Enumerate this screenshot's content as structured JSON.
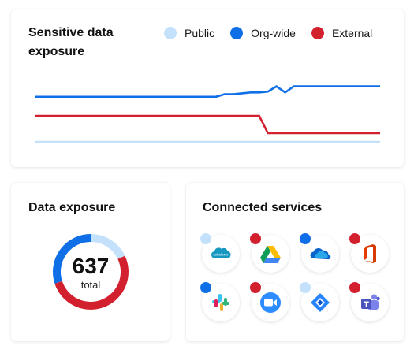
{
  "top_card": {
    "title": "Sensitive data exposure",
    "legend": [
      {
        "label": "Public",
        "color": "#c4e1fb"
      },
      {
        "label": "Org-wide",
        "color": "#0f6fe6"
      },
      {
        "label": "External",
        "color": "#d2202f"
      }
    ]
  },
  "exposure_card": {
    "title": "Data exposure",
    "value": "637",
    "label": "total",
    "segments": [
      {
        "name": "Public",
        "fraction": 0.18,
        "color": "#c4e1fb"
      },
      {
        "name": "External",
        "fraction": 0.52,
        "color": "#d2202f"
      },
      {
        "name": "Org-wide",
        "fraction": 0.3,
        "color": "#0f6fe6"
      }
    ]
  },
  "services_card": {
    "title": "Connected services",
    "services": [
      {
        "icon": "salesforce-icon",
        "wordmark": "salesforce",
        "badge": "#c4e1fb"
      },
      {
        "icon": "google-drive-icon",
        "badge": "#d2202f"
      },
      {
        "icon": "onedrive-icon",
        "badge": "#0f6fe6"
      },
      {
        "icon": "office-icon",
        "badge": "#d2202f"
      },
      {
        "icon": "slack-icon",
        "badge": "#0f6fe6"
      },
      {
        "icon": "zoom-icon",
        "badge": "#d2202f"
      },
      {
        "icon": "jira-icon",
        "badge": "#c4e1fb"
      },
      {
        "icon": "teams-icon",
        "badge": "#d2202f"
      }
    ]
  },
  "chart_data": {
    "type": "line",
    "x": [
      0,
      1,
      2,
      3,
      4,
      5,
      6,
      7,
      8,
      9,
      10,
      11,
      12,
      13,
      14,
      15,
      16,
      17,
      18,
      19,
      20,
      21,
      22,
      23,
      24,
      25,
      26,
      27,
      28,
      29,
      30,
      31,
      32,
      33,
      34,
      35,
      36,
      37,
      38,
      39,
      40
    ],
    "series": [
      {
        "name": "Public",
        "color": "#c4e1fb",
        "values": [
          0,
          0,
          0,
          0,
          0,
          0,
          0,
          0,
          0,
          0,
          0,
          0,
          0,
          0,
          0,
          0,
          0,
          0,
          0,
          0,
          0,
          0,
          0,
          0,
          0,
          0,
          0,
          0,
          0,
          0,
          0,
          0,
          0,
          0,
          0,
          0,
          0,
          0,
          0,
          0,
          0
        ]
      },
      {
        "name": "Org-wide",
        "color": "#0f6fe6",
        "values": [
          52,
          52,
          52,
          52,
          52,
          52,
          52,
          52,
          52,
          52,
          52,
          52,
          52,
          52,
          52,
          52,
          52,
          52,
          52,
          52,
          52,
          52,
          55,
          55,
          56,
          57,
          57,
          58,
          64,
          57,
          64,
          64,
          64,
          64,
          64,
          64,
          64,
          64,
          64,
          64,
          64
        ]
      },
      {
        "name": "External",
        "color": "#d2202f",
        "values": [
          30,
          30,
          30,
          30,
          30,
          30,
          30,
          30,
          30,
          30,
          30,
          30,
          30,
          30,
          30,
          30,
          30,
          30,
          30,
          30,
          30,
          30,
          30,
          30,
          30,
          30,
          30,
          10,
          10,
          10,
          10,
          10,
          10,
          10,
          10,
          10,
          10,
          10,
          10,
          10,
          10
        ]
      }
    ],
    "ylim": [
      0,
      80
    ],
    "grid": false,
    "legend": "top-right"
  }
}
